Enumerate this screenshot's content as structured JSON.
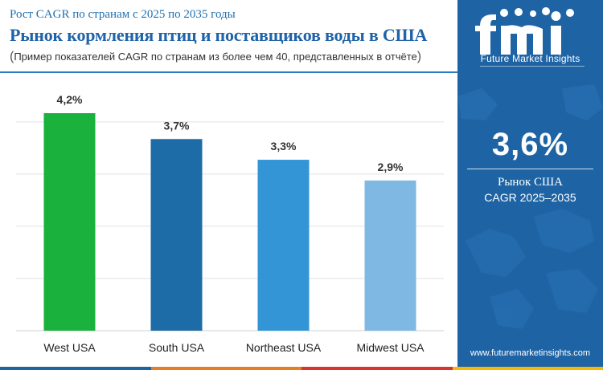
{
  "header": {
    "subtitle": "Рост CAGR по странам с 2025 по 2035 годы",
    "title": "Рынок кормления птиц и поставщиков воды в США",
    "note_open": "(",
    "note_text": "Пример показателей CAGR по странам из более чем 40, представленных в отчёте",
    "note_close": ")"
  },
  "chart_data": {
    "type": "bar",
    "categories": [
      "West USA",
      "South USA",
      "Northeast USA",
      "Midwest USA"
    ],
    "values": [
      4.2,
      3.7,
      3.3,
      2.9
    ],
    "value_labels": [
      "4,2%",
      "3,7%",
      "3,3%",
      "2,9%"
    ],
    "bar_colors": [
      "#1ab13d",
      "#1d6ba7",
      "#3394d6",
      "#7fb9e3"
    ],
    "ylim": [
      0,
      4.2
    ],
    "grid": true,
    "title": "",
    "xlabel": "",
    "ylabel": ""
  },
  "sidebar": {
    "logo_text": "fmi",
    "brand": "Future Market Insights",
    "headline_value": "3,6%",
    "label_line1": "Рынок США",
    "label_line2": "CAGR 2025–2035",
    "website": "www.futuremarketinsights.com",
    "background_color": "#1e64a5"
  },
  "footer_colors": [
    "#1e64a5",
    "#e67e22",
    "#d9342b",
    "#f5b800"
  ]
}
